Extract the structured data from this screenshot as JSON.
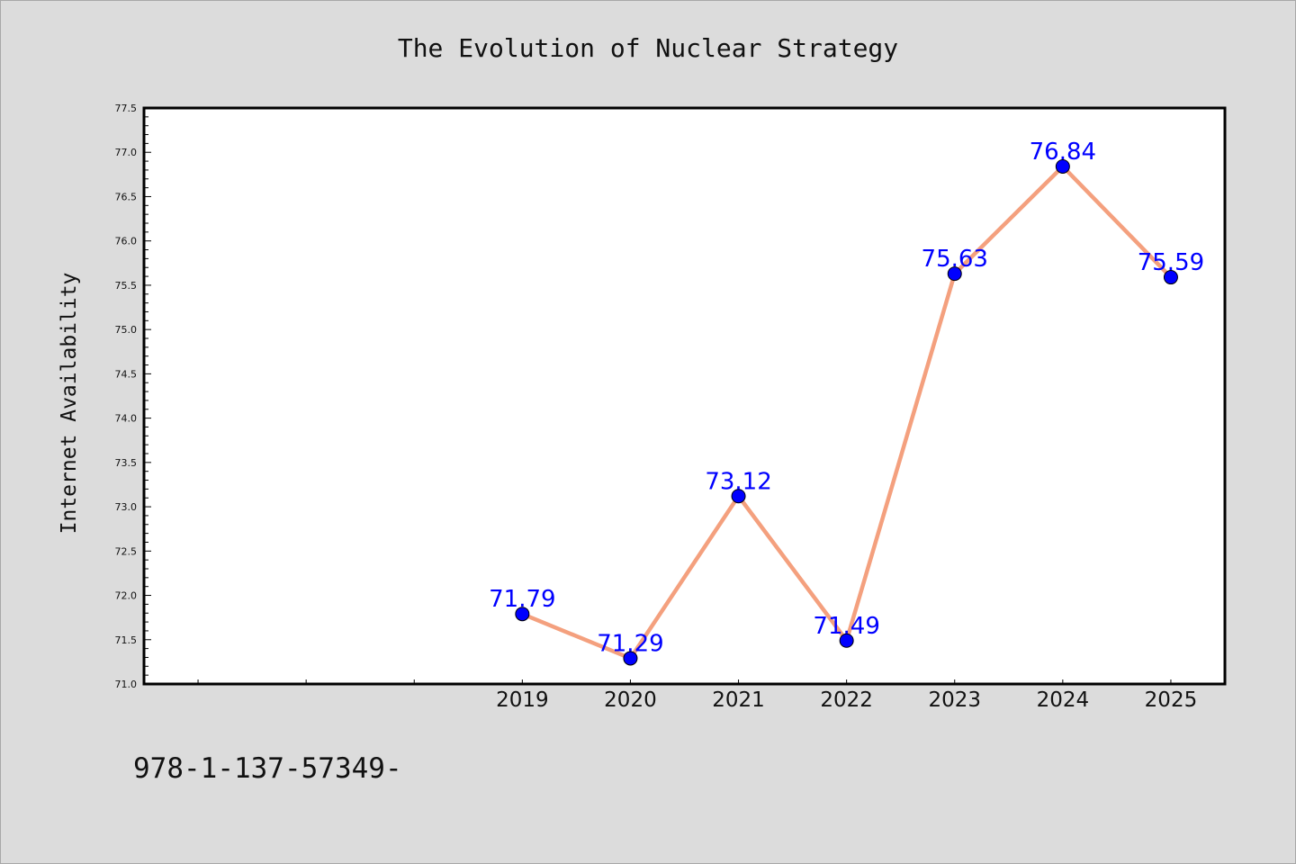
{
  "chart_data": {
    "type": "line",
    "title": "The Evolution of Nuclear Strategy",
    "ylabel": "Internet Availability",
    "xlabel": "",
    "categories": [
      "2019",
      "2020",
      "2021",
      "2022",
      "2023",
      "2024",
      "2025"
    ],
    "series": [
      {
        "values": [
          71.79,
          71.29,
          73.12,
          71.49,
          75.63,
          76.84,
          75.59
        ],
        "labels": [
          "71.79",
          "71.29",
          "73.12",
          "71.49",
          "75.63",
          "76.84",
          "75.59"
        ]
      }
    ],
    "ylim": [
      71.0,
      77.5
    ],
    "xlim": [
      2015.5,
      2025.5
    ],
    "yticks": [
      "71.0",
      "71.5",
      "72.0",
      "72.5",
      "73.0",
      "73.5",
      "74.0",
      "74.5",
      "75.0",
      "75.5",
      "76.0",
      "76.5",
      "77.0",
      "77.5"
    ],
    "grid": false,
    "line_color": "#f4a07e",
    "marker_color": "#0000ff",
    "label_color": "#0000ff"
  },
  "footer_text": "978-1-137-57349-"
}
